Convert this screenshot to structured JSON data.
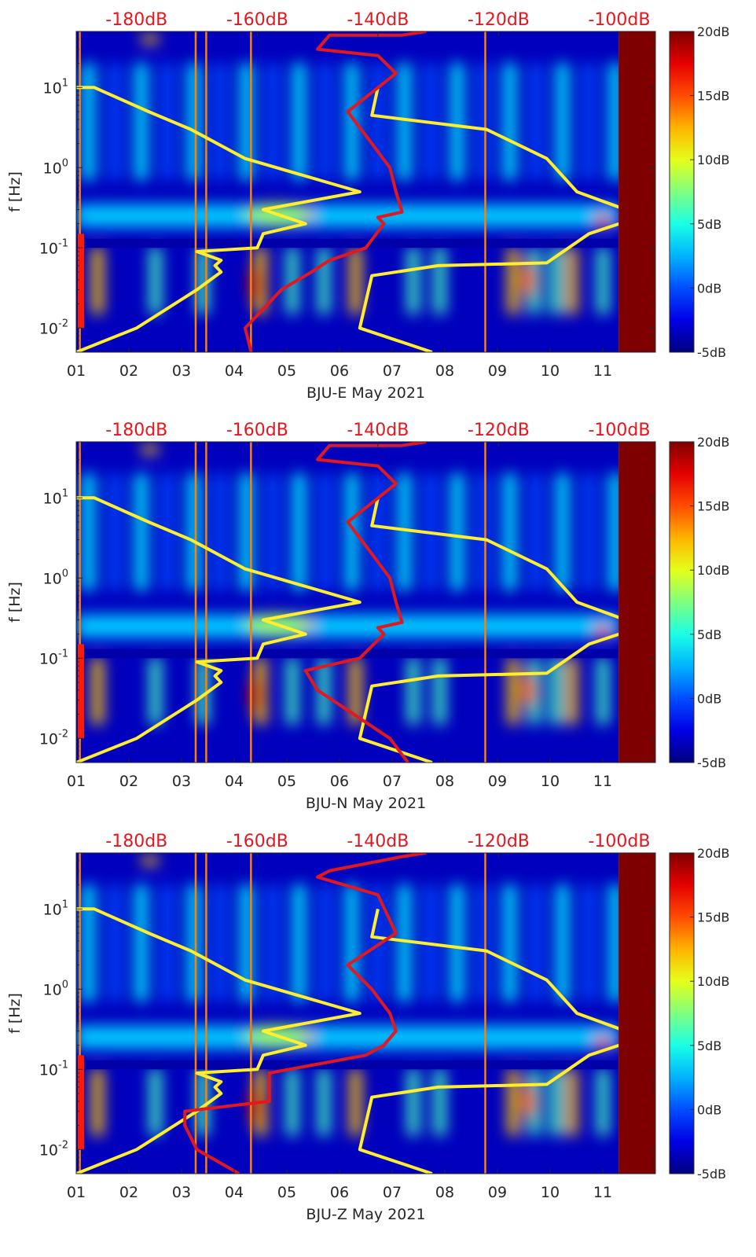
{
  "chart_data": [
    {
      "type": "heatmap",
      "station_label": "BJU-E May 2021",
      "ylabel": "f [Hz]",
      "x_ticks": [
        "01",
        "02",
        "03",
        "04",
        "05",
        "06",
        "07",
        "08",
        "09",
        "10",
        "11"
      ],
      "xlim": [
        1,
        12
      ],
      "y_scale": "log",
      "ylim": [
        0.005,
        50
      ],
      "y_ticks": [
        "10^-2",
        "10^-1",
        "10^0",
        "10^1"
      ],
      "top_axis_ticks": [
        "-180dB",
        "-160dB",
        "-140dB",
        "-120dB",
        "-100dB"
      ],
      "top_axis_values": [
        -180,
        -160,
        -140,
        -120,
        -100
      ],
      "top_axis_range_db": [
        -190,
        -94
      ],
      "colorbar": {
        "ticks": [
          "-5dB",
          "0dB",
          "5dB",
          "10dB",
          "15dB",
          "20dB"
        ],
        "range": [
          -5,
          20
        ],
        "colormap": "jet"
      },
      "series": [
        {
          "color": "#ffee2e",
          "x": [
            -190,
            -180,
            -170,
            -166,
            -167,
            -166,
            -170,
            -160,
            -159,
            -152,
            -159,
            -143,
            -162,
            -171,
            -178,
            -187,
            -190
          ],
          "y": [
            0.005,
            0.01,
            0.03,
            0.05,
            0.06,
            0.07,
            0.09,
            0.1,
            0.15,
            0.2,
            0.3,
            0.5,
            1.3,
            3,
            5,
            10,
            10
          ]
        },
        {
          "color": "#ffee2e",
          "x": [
            -131,
            -143,
            -141,
            -130,
            -112,
            -105,
            -100,
            -94,
            -107,
            -112,
            -122,
            -141,
            -140
          ],
          "y": [
            0.005,
            0.01,
            0.045,
            0.06,
            0.065,
            0.15,
            0.2,
            0.22,
            0.5,
            1.3,
            3,
            4.5,
            10
          ]
        },
        {
          "color": "#e3171e",
          "x": [
            -161,
            -162,
            -156,
            -151,
            -148,
            -142,
            -139,
            -140,
            -136,
            -137,
            -138,
            -141,
            -145,
            -137,
            -140,
            -150,
            -148,
            -136,
            -132
          ],
          "y": [
            0.005,
            0.01,
            0.03,
            0.05,
            0.07,
            0.1,
            0.2,
            0.24,
            0.28,
            0.5,
            1,
            2,
            5,
            15,
            25,
            30,
            45,
            45,
            50
          ]
        }
      ]
    },
    {
      "type": "heatmap",
      "station_label": "BJU-N May 2021",
      "ylabel": "f [Hz]",
      "x_ticks": [
        "01",
        "02",
        "03",
        "04",
        "05",
        "06",
        "07",
        "08",
        "09",
        "10",
        "11"
      ],
      "xlim": [
        1,
        12
      ],
      "y_scale": "log",
      "ylim": [
        0.005,
        50
      ],
      "y_ticks": [
        "10^-2",
        "10^-1",
        "10^0",
        "10^1"
      ],
      "top_axis_ticks": [
        "-180dB",
        "-160dB",
        "-140dB",
        "-120dB",
        "-100dB"
      ],
      "top_axis_values": [
        -180,
        -160,
        -140,
        -120,
        -100
      ],
      "top_axis_range_db": [
        -190,
        -94
      ],
      "colorbar": {
        "ticks": [
          "-5dB",
          "0dB",
          "5dB",
          "10dB",
          "15dB",
          "20dB"
        ],
        "range": [
          -5,
          20
        ],
        "colormap": "jet"
      },
      "series": [
        {
          "color": "#ffee2e",
          "x": [
            -190,
            -180,
            -170,
            -166,
            -167,
            -166,
            -170,
            -160,
            -159,
            -152,
            -159,
            -143,
            -162,
            -171,
            -178,
            -187,
            -190
          ],
          "y": [
            0.005,
            0.01,
            0.03,
            0.05,
            0.06,
            0.07,
            0.09,
            0.1,
            0.15,
            0.2,
            0.3,
            0.5,
            1.3,
            3,
            5,
            10,
            10
          ]
        },
        {
          "color": "#ffee2e",
          "x": [
            -131,
            -143,
            -141,
            -130,
            -112,
            -105,
            -100,
            -94,
            -107,
            -112,
            -122,
            -141,
            -140
          ],
          "y": [
            0.005,
            0.01,
            0.045,
            0.06,
            0.065,
            0.15,
            0.2,
            0.22,
            0.5,
            1.3,
            3,
            4.5,
            10
          ]
        },
        {
          "color": "#e3171e",
          "x": [
            -135,
            -138,
            -144,
            -150,
            -152,
            -143,
            -139,
            -140,
            -136,
            -137,
            -138,
            -141,
            -145,
            -137,
            -140,
            -150,
            -148,
            -136,
            -132
          ],
          "y": [
            0.005,
            0.01,
            0.02,
            0.04,
            0.07,
            0.1,
            0.2,
            0.24,
            0.28,
            0.5,
            1,
            2,
            5,
            15,
            25,
            30,
            45,
            45,
            50
          ]
        }
      ]
    },
    {
      "type": "heatmap",
      "station_label": "BJU-Z May 2021",
      "ylabel": "f [Hz]",
      "x_ticks": [
        "01",
        "02",
        "03",
        "04",
        "05",
        "06",
        "07",
        "08",
        "09",
        "10",
        "11"
      ],
      "xlim": [
        1,
        12
      ],
      "y_scale": "log",
      "ylim": [
        0.005,
        50
      ],
      "y_ticks": [
        "10^-2",
        "10^-1",
        "10^0",
        "10^1"
      ],
      "top_axis_ticks": [
        "-180dB",
        "-160dB",
        "-140dB",
        "-120dB",
        "-100dB"
      ],
      "top_axis_values": [
        -180,
        -160,
        -140,
        -120,
        -100
      ],
      "top_axis_range_db": [
        -190,
        -94
      ],
      "colorbar": {
        "ticks": [
          "-5dB",
          "0dB",
          "5dB",
          "10dB",
          "15dB",
          "20dB"
        ],
        "range": [
          -5,
          20
        ],
        "colormap": "jet"
      },
      "series": [
        {
          "color": "#ffee2e",
          "x": [
            -190,
            -180,
            -170,
            -166,
            -167,
            -166,
            -170,
            -160,
            -159,
            -152,
            -159,
            -143,
            -162,
            -171,
            -178,
            -187,
            -190
          ],
          "y": [
            0.005,
            0.01,
            0.03,
            0.05,
            0.06,
            0.07,
            0.09,
            0.1,
            0.15,
            0.2,
            0.3,
            0.5,
            1.3,
            3,
            5,
            10,
            10
          ]
        },
        {
          "color": "#ffee2e",
          "x": [
            -131,
            -143,
            -141,
            -130,
            -112,
            -105,
            -100,
            -94,
            -107,
            -112,
            -122,
            -141,
            -140
          ],
          "y": [
            0.005,
            0.01,
            0.045,
            0.06,
            0.065,
            0.15,
            0.2,
            0.22,
            0.5,
            1.3,
            3,
            4.5,
            10
          ]
        },
        {
          "color": "#e3171e",
          "x": [
            -163,
            -170,
            -172,
            -172,
            -158,
            -158,
            -142,
            -139,
            -137,
            -138,
            -141,
            -145,
            -137,
            -140,
            -150,
            -148,
            -136,
            -132
          ],
          "y": [
            0.005,
            0.01,
            0.02,
            0.03,
            0.04,
            0.09,
            0.15,
            0.2,
            0.3,
            0.5,
            1,
            2,
            5,
            15,
            25,
            30,
            45,
            50
          ]
        }
      ]
    }
  ]
}
